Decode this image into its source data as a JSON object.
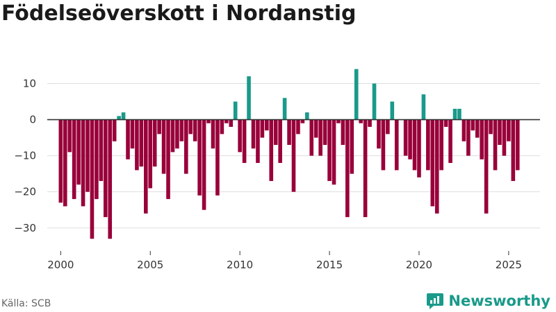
{
  "title": "Födelseöverskott i Nordanstig",
  "source": "Källa: SCB",
  "brand": "Newsworthy",
  "colors": {
    "positive": "#1a9a8a",
    "negative": "#99003a",
    "grid": "#dddddd",
    "zero": "#333333",
    "brand": "#1a9a8a"
  },
  "chart_data": {
    "type": "bar",
    "title": "Födelseöverskott i Nordanstig",
    "xlabel": "",
    "ylabel": "",
    "x_unit": "year (quarterly bars)",
    "start": 2000.0,
    "step": 0.25,
    "xlim": [
      1999.25,
      2026.75
    ],
    "ylim": [
      -36,
      17
    ],
    "yticks": [
      10,
      0,
      -10,
      -20,
      -30
    ],
    "xticks": [
      2000,
      2005,
      2010,
      2015,
      2020,
      2025
    ],
    "values": [
      -23,
      -24,
      -9,
      -22,
      -18,
      -24,
      -20,
      -33,
      -22,
      -17,
      -27,
      -33,
      -6,
      1,
      2,
      -11,
      -8,
      -14,
      -13,
      -26,
      -19,
      -13,
      -4,
      -15,
      -22,
      -9,
      -8,
      -6,
      -15,
      -4,
      -6,
      -21,
      -25,
      -1,
      -8,
      -21,
      -4,
      -1,
      -2,
      5,
      -9,
      -12,
      12,
      -8,
      -12,
      -5,
      -3,
      -17,
      -7,
      -12,
      6,
      -7,
      -20,
      -4,
      -1,
      2,
      -10,
      -5,
      -10,
      -7,
      -17,
      -18,
      -1,
      -7,
      -27,
      -15,
      14,
      -1,
      -27,
      -2,
      10,
      -8,
      -14,
      -4,
      5,
      -14,
      0,
      -10,
      -11,
      -14,
      -16,
      7,
      -14,
      -24,
      -26,
      -14,
      -2,
      -12,
      3,
      3,
      -6,
      -10,
      -3,
      -5,
      -11,
      -26,
      -4,
      -14,
      -7,
      -10,
      -6,
      -17,
      -14
    ]
  }
}
